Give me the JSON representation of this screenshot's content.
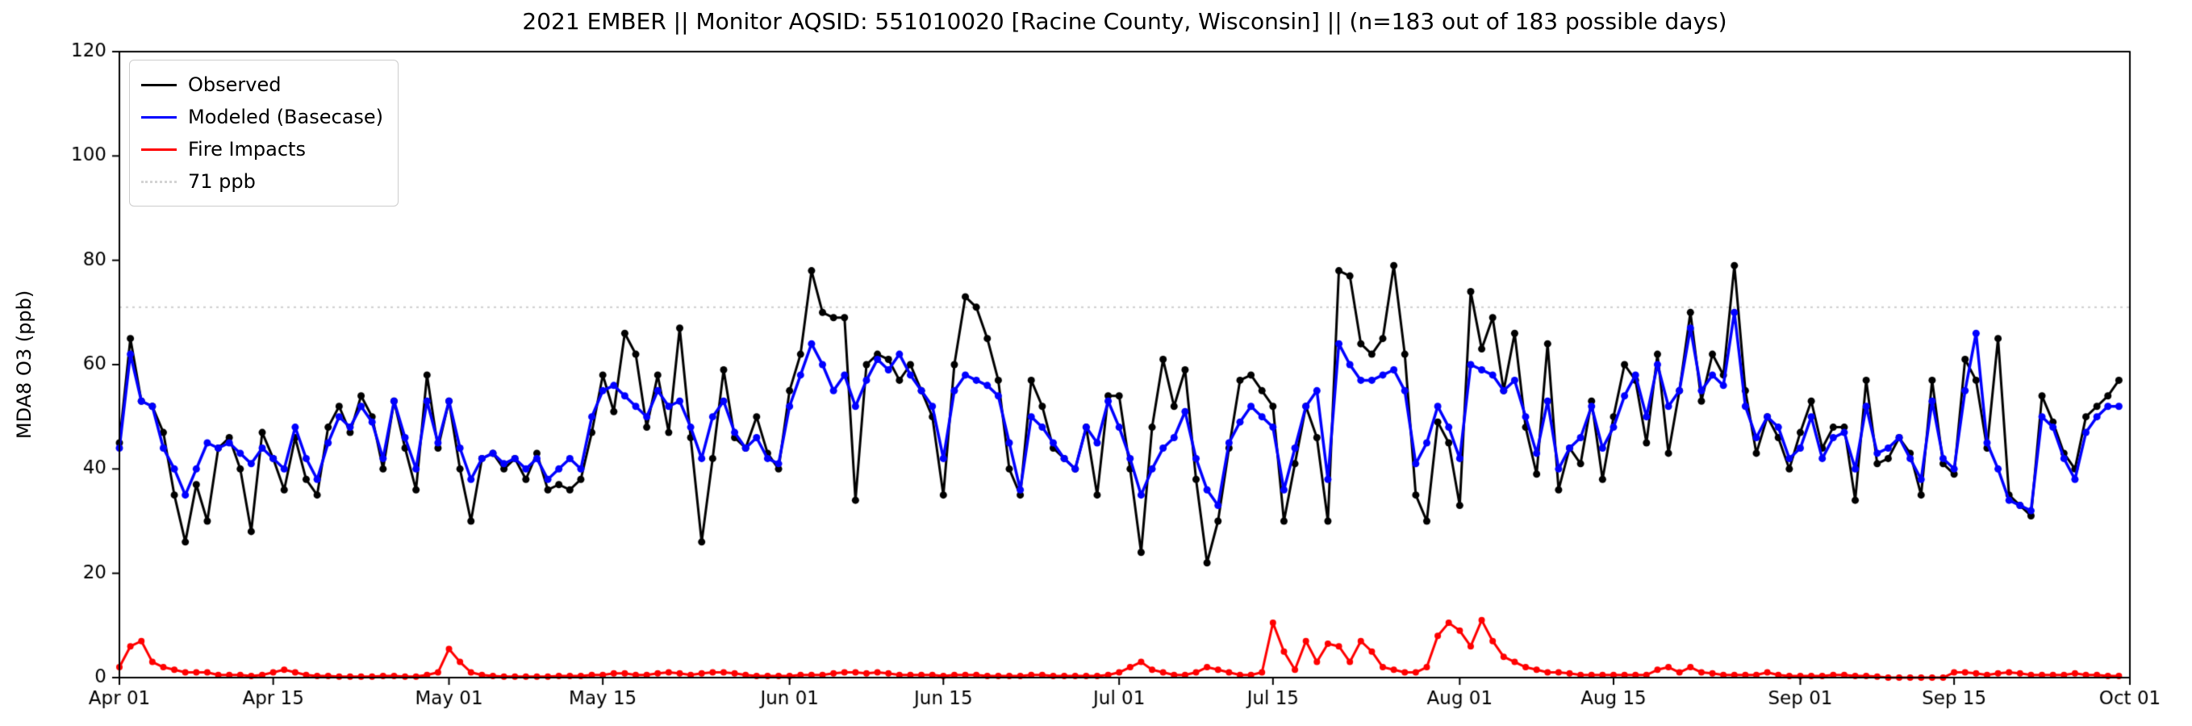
{
  "figure": {
    "title": "2021 EMBER || Monitor AQSID: 551010020 [Racine County, Wisconsin] || (n=183 out of 183 possible days)",
    "ylabel": "MDA8 O3 (ppb)"
  },
  "legend": {
    "items": [
      {
        "label": "Observed",
        "color": "#000000",
        "style": "solid"
      },
      {
        "label": "Modeled (Basecase)",
        "color": "#0000ff",
        "style": "solid"
      },
      {
        "label": "Fire Impacts",
        "color": "#ff0000",
        "style": "solid"
      },
      {
        "label": "71 ppb",
        "color": "#d3d3d3",
        "style": "dotted"
      }
    ]
  },
  "chart_data": {
    "type": "line",
    "title": "2021 EMBER || Monitor AQSID: 551010020 [Racine County, Wisconsin] || (n=183 out of 183 possible days)",
    "xlabel": "",
    "ylabel": "MDA8 O3 (ppb)",
    "ylim": [
      0,
      120
    ],
    "yticks": [
      0,
      20,
      40,
      60,
      80,
      100,
      120
    ],
    "xlim_days": [
      0,
      183
    ],
    "xticks": {
      "positions_days": [
        0,
        14,
        30,
        44,
        61,
        75,
        91,
        105,
        122,
        136,
        153,
        167,
        183
      ],
      "labels": [
        "Apr 01",
        "Apr 15",
        "May 01",
        "May 15",
        "Jun 01",
        "Jun 15",
        "Jul 01",
        "Jul 15",
        "Aug 01",
        "Aug 15",
        "Sep 01",
        "Sep 15",
        "Oct 01"
      ]
    },
    "grid": false,
    "legend_position": "upper left",
    "threshold": {
      "value": 71,
      "label": "71 ppb",
      "color": "#d3d3d3",
      "style": "dotted"
    },
    "x_start_date": "Apr 01",
    "n_points": 183,
    "series": [
      {
        "name": "Observed",
        "color": "#000000",
        "values": [
          45,
          65,
          53,
          52,
          47,
          35,
          26,
          37,
          30,
          44,
          46,
          40,
          28,
          47,
          42,
          36,
          46,
          38,
          35,
          48,
          52,
          47,
          54,
          50,
          40,
          53,
          44,
          36,
          58,
          44,
          53,
          40,
          30,
          42,
          43,
          40,
          42,
          38,
          43,
          36,
          37,
          36,
          38,
          47,
          58,
          51,
          66,
          62,
          48,
          58,
          47,
          67,
          46,
          26,
          42,
          59,
          46,
          44,
          50,
          43,
          40,
          55,
          62,
          78,
          70,
          69,
          69,
          34,
          60,
          62,
          61,
          57,
          60,
          55,
          50,
          35,
          60,
          73,
          71,
          65,
          57,
          40,
          35,
          57,
          52,
          44,
          42,
          40,
          48,
          35,
          54,
          54,
          40,
          24,
          48,
          61,
          52,
          59,
          38,
          22,
          30,
          44,
          57,
          58,
          55,
          52,
          30,
          41,
          52,
          46,
          30,
          78,
          77,
          64,
          62,
          65,
          79,
          62,
          35,
          30,
          49,
          45,
          33,
          74,
          63,
          69,
          55,
          66,
          48,
          39,
          64,
          36,
          44,
          41,
          53,
          38,
          50,
          60,
          57,
          45,
          62,
          43,
          55,
          70,
          53,
          62,
          58,
          79,
          55,
          43,
          50,
          46,
          40,
          47,
          53,
          44,
          48,
          48,
          34,
          57,
          41,
          42,
          46,
          43,
          35,
          57,
          41,
          39,
          61,
          57,
          44,
          65,
          35,
          33,
          31,
          54,
          49,
          43,
          40,
          50,
          52,
          54,
          57
        ]
      },
      {
        "name": "Modeled (Basecase)",
        "color": "#0000ff",
        "values": [
          44,
          62,
          53,
          52,
          44,
          40,
          35,
          40,
          45,
          44,
          45,
          43,
          41,
          44,
          42,
          40,
          48,
          42,
          38,
          45,
          50,
          48,
          52,
          49,
          42,
          53,
          46,
          40,
          53,
          45,
          53,
          44,
          38,
          42,
          43,
          41,
          42,
          40,
          42,
          38,
          40,
          42,
          40,
          50,
          55,
          56,
          54,
          52,
          50,
          55,
          52,
          53,
          48,
          42,
          50,
          53,
          47,
          44,
          46,
          42,
          41,
          52,
          58,
          64,
          60,
          55,
          58,
          52,
          57,
          61,
          59,
          62,
          58,
          55,
          52,
          42,
          55,
          58,
          57,
          56,
          54,
          45,
          36,
          50,
          48,
          45,
          42,
          40,
          48,
          45,
          53,
          48,
          42,
          35,
          40,
          44,
          46,
          51,
          42,
          36,
          33,
          45,
          49,
          52,
          50,
          48,
          36,
          44,
          52,
          55,
          38,
          64,
          60,
          57,
          57,
          58,
          59,
          55,
          41,
          45,
          52,
          48,
          42,
          60,
          59,
          58,
          55,
          57,
          50,
          43,
          53,
          40,
          44,
          46,
          52,
          44,
          48,
          54,
          58,
          50,
          60,
          52,
          55,
          67,
          55,
          58,
          56,
          70,
          52,
          46,
          50,
          48,
          42,
          44,
          50,
          42,
          46,
          47,
          40,
          52,
          43,
          44,
          46,
          42,
          38,
          53,
          42,
          40,
          55,
          66,
          45,
          40,
          34,
          33,
          32,
          50,
          48,
          42,
          38,
          47,
          50,
          52,
          52
        ]
      },
      {
        "name": "Fire Impacts",
        "color": "#ff0000",
        "values": [
          2,
          6,
          7,
          3,
          2,
          1.5,
          1,
          1,
          1,
          0.5,
          0.5,
          0.5,
          0.3,
          0.5,
          1,
          1.5,
          1,
          0.5,
          0.3,
          0.3,
          0.2,
          0.2,
          0.2,
          0.2,
          0.3,
          0.3,
          0.2,
          0.2,
          0.5,
          1,
          5.5,
          3,
          1,
          0.5,
          0.3,
          0.2,
          0.2,
          0.2,
          0.2,
          0.2,
          0.3,
          0.3,
          0.3,
          0.5,
          0.5,
          0.8,
          0.8,
          0.5,
          0.5,
          0.8,
          1,
          0.8,
          0.5,
          0.8,
          1,
          1,
          0.8,
          0.5,
          0.3,
          0.3,
          0.3,
          0.3,
          0.5,
          0.5,
          0.5,
          0.8,
          1,
          1,
          0.8,
          1,
          0.8,
          0.5,
          0.5,
          0.5,
          0.5,
          0.3,
          0.5,
          0.5,
          0.5,
          0.3,
          0.3,
          0.3,
          0.3,
          0.5,
          0.5,
          0.3,
          0.3,
          0.3,
          0.3,
          0.3,
          0.5,
          1,
          2,
          3,
          1.5,
          1,
          0.5,
          0.5,
          1,
          2,
          1.5,
          1,
          0.5,
          0.5,
          1,
          10.5,
          5,
          1.5,
          7,
          3,
          6.5,
          6,
          3,
          7,
          5,
          2,
          1.5,
          1,
          1,
          2,
          8,
          10.5,
          9,
          6,
          11,
          7,
          4,
          3,
          2,
          1.5,
          1,
          1,
          0.8,
          0.5,
          0.5,
          0.5,
          0.5,
          0.5,
          0.5,
          0.5,
          1.5,
          2,
          1,
          2,
          1,
          0.8,
          0.5,
          0.5,
          0.5,
          0.5,
          1,
          0.5,
          0.3,
          0.3,
          0.3,
          0.3,
          0.5,
          0.5,
          0.3,
          0.3,
          0.2,
          0,
          0,
          0,
          0,
          0,
          0,
          1,
          1,
          0.8,
          0.5,
          0.8,
          1,
          0.8,
          0.5,
          0.5,
          0.5,
          0.5,
          0.8,
          0.5,
          0.5,
          0.3,
          0.3
        ]
      }
    ]
  },
  "axes": {
    "ytick_labels": [
      "0",
      "20",
      "40",
      "60",
      "80",
      "100",
      "120"
    ]
  }
}
